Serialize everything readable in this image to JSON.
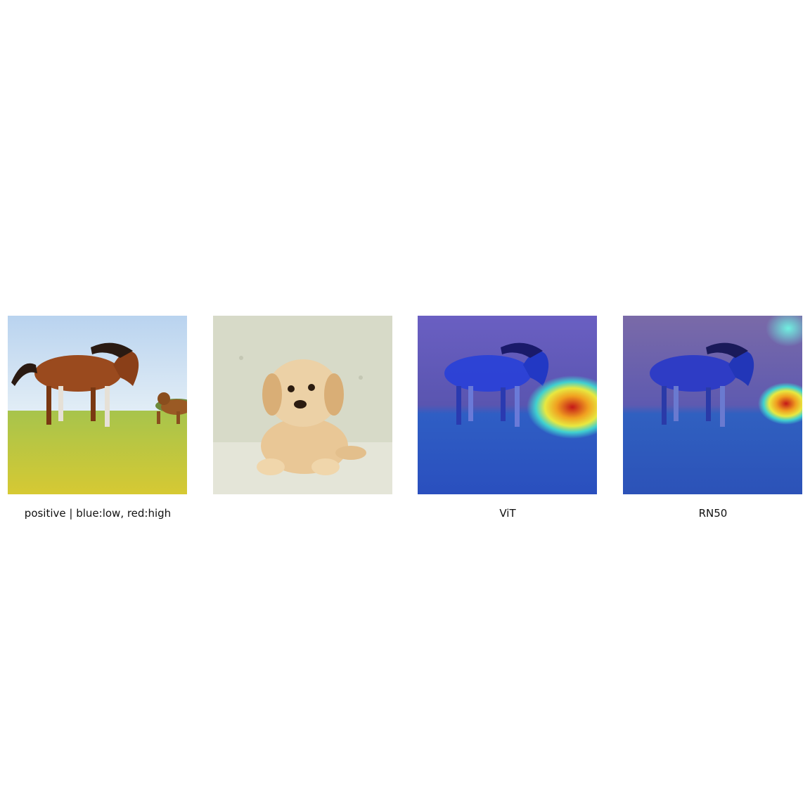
{
  "panels": [
    {
      "subject": "horse and dog on grass",
      "caption": "positive | blue:low, red:high"
    },
    {
      "subject": "golden retriever puppy on couch",
      "caption": ""
    },
    {
      "subject": "attention heatmap over horse image",
      "caption": "ViT"
    },
    {
      "subject": "attention heatmap over horse image",
      "caption": "RN50"
    }
  ],
  "colors": {
    "sky": "#c9def0",
    "grass": "#b8c93a",
    "horse": "#9a4a1e",
    "puppy": "#e7c79a",
    "couch": "#d6d9c6",
    "heat_low": "#2a3fd0",
    "heat_high": "#d42020"
  }
}
